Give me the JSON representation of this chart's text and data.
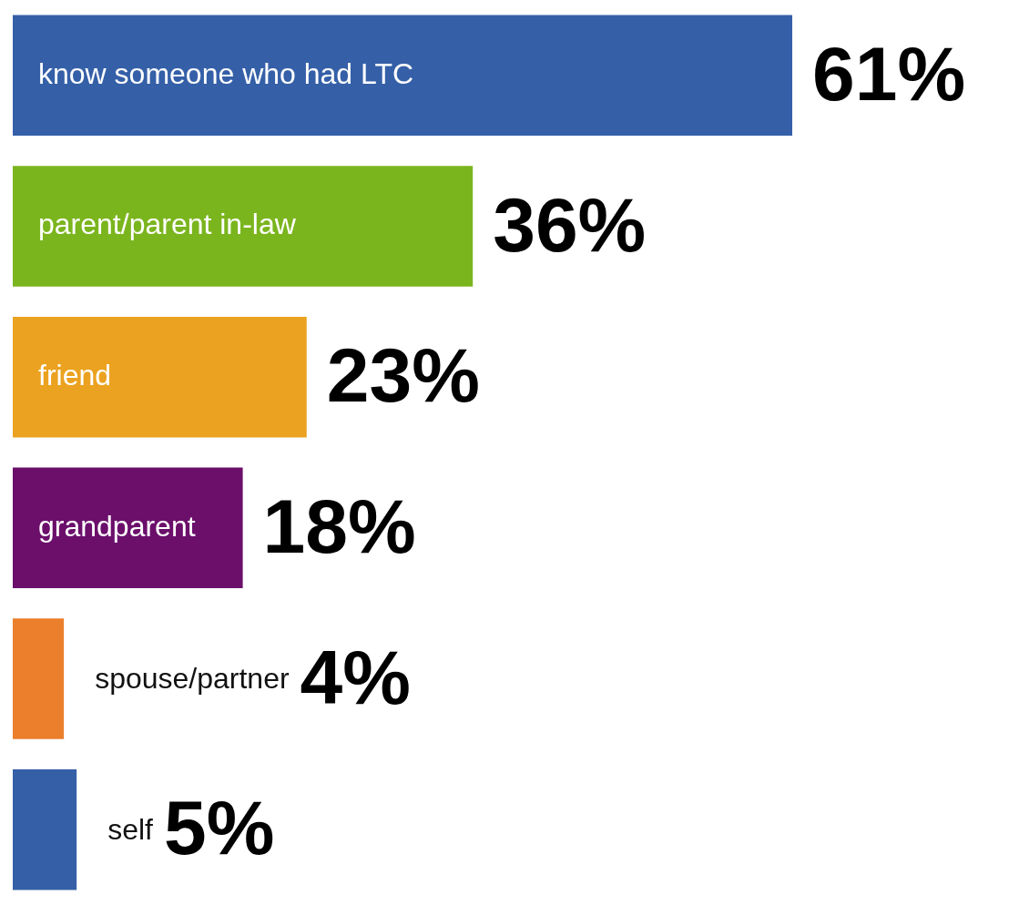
{
  "chart_data": {
    "type": "bar",
    "orientation": "horizontal",
    "categories": [
      "know someone who had LTC",
      "parent/parent in-law",
      "friend",
      "grandparent",
      "spouse/partner",
      "self"
    ],
    "values": [
      61,
      36,
      23,
      18,
      4,
      5
    ],
    "colors": [
      "#3560a8",
      "#7bb51e",
      "#eba220",
      "#6b0f6b",
      "#ec7f2c",
      "#3560a8"
    ],
    "value_labels": [
      "61%",
      "36%",
      "23%",
      "18%",
      "4%",
      "5%"
    ],
    "tick_labels": false,
    "legend": false
  }
}
